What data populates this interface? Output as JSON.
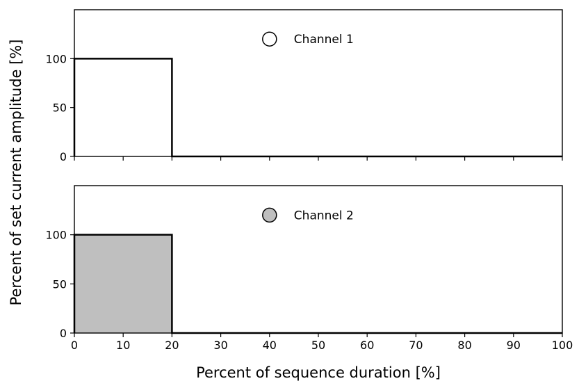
{
  "chart_data": {
    "type": "area",
    "ylabel": "Percent of set current amplitude [%]",
    "xlabel": "Percent of sequence duration [%]",
    "xlim": [
      0,
      100
    ],
    "ylim": [
      0,
      150
    ],
    "x_ticks": [
      "0",
      "10",
      "20",
      "30",
      "40",
      "50",
      "60",
      "70",
      "80",
      "90",
      "100"
    ],
    "y_ticks": [
      "0",
      "50",
      "100"
    ],
    "grid": false,
    "panels": [
      {
        "legend_label": "Channel 1",
        "legend_marker_position": {
          "x": 40,
          "y": 120
        },
        "fill_color": "#ffffff",
        "series": [
          {
            "x": [
              0,
              0,
              20,
              20,
              100
            ],
            "y": [
              0,
              100,
              100,
              0,
              0
            ]
          }
        ]
      },
      {
        "legend_label": "Channel 2",
        "legend_marker_position": {
          "x": 40,
          "y": 120
        },
        "fill_color": "#bfbfbf",
        "series": [
          {
            "x": [
              0,
              0,
              20,
              20,
              100
            ],
            "y": [
              0,
              100,
              100,
              0,
              0
            ]
          }
        ]
      }
    ]
  }
}
